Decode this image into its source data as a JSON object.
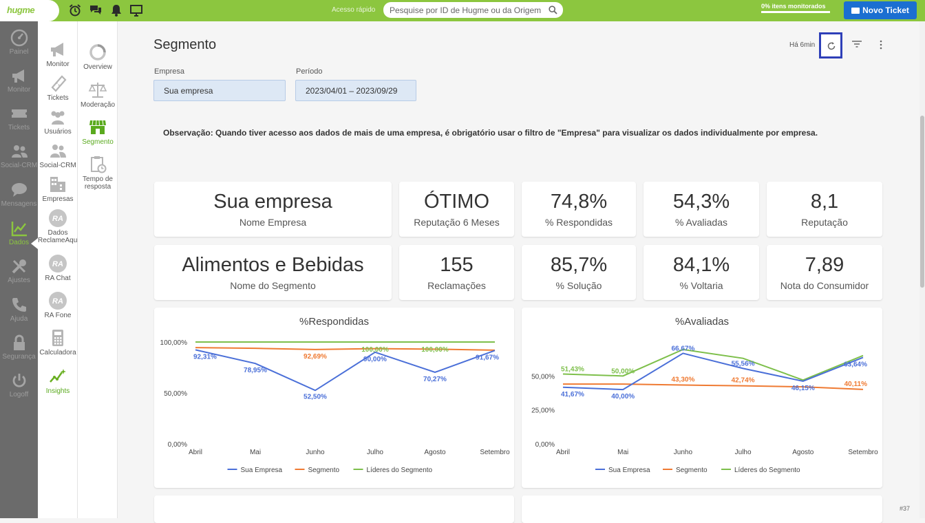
{
  "header": {
    "logo": "hugme",
    "quick_access_label": "Acesso rápido",
    "search_placeholder": "Pesquise por ID de Hugme ou da Origem",
    "monitor_status": "0% itens monitorados",
    "new_ticket_label": "Novo Ticket",
    "icons": [
      "alarm-icon",
      "chat-icon",
      "bell-icon",
      "monitor-icon"
    ]
  },
  "nav": {
    "items": [
      {
        "label": "Painel",
        "icon": "dashboard-icon"
      },
      {
        "label": "Monitor",
        "icon": "megaphone-icon"
      },
      {
        "label": "Tickets",
        "icon": "ticket-icon"
      },
      {
        "label": "Social-CRM",
        "icon": "users-icon"
      },
      {
        "label": "Mensagens",
        "icon": "speech-bubble-icon"
      },
      {
        "label": "Dados",
        "icon": "line-chart-icon",
        "active": true
      },
      {
        "label": "Ajustes",
        "icon": "tools-icon"
      },
      {
        "label": "Ajuda",
        "icon": "phone-icon"
      },
      {
        "label": "Segurança",
        "icon": "lock-icon"
      },
      {
        "label": "Logoff",
        "icon": "power-icon"
      }
    ]
  },
  "submenu1": {
    "items": [
      {
        "label": "Monitor",
        "icon": "megaphone-icon"
      },
      {
        "label": "Tickets",
        "icon": "ticket-icon"
      },
      {
        "label": "Usuários",
        "icon": "users-icon"
      },
      {
        "label": "Social-CRM",
        "icon": "users-icon"
      },
      {
        "label": "Empresas",
        "icon": "building-icon"
      },
      {
        "label": "Dados ReclameAqui",
        "icon": "ra-icon"
      },
      {
        "label": "RA Chat",
        "icon": "ra-icon"
      },
      {
        "label": "RA Fone",
        "icon": "ra-icon"
      },
      {
        "label": "Calculadora",
        "icon": "calculator-icon"
      },
      {
        "label": "Insights",
        "icon": "sparkle-icon",
        "active": true
      }
    ]
  },
  "submenu2": {
    "items": [
      {
        "label": "Overview",
        "icon": "ring-icon"
      },
      {
        "label": "Moderação",
        "icon": "scale-icon"
      },
      {
        "label": "Segmento",
        "icon": "store-icon",
        "active": true
      },
      {
        "label": "Tempo de resposta",
        "icon": "clipboard-clock-icon"
      }
    ]
  },
  "page": {
    "title": "Segmento",
    "updated": "Há 6min",
    "filters": {
      "company_label": "Empresa",
      "company_value": "Sua empresa",
      "period_label": "Período",
      "period_value": "2023/04/01 – 2023/09/29"
    },
    "note": "Observação: Quando tiver acesso aos dados de mais de uma empresa, é obrigatório usar o filtro de \"Empresa\" para visualizar os dados individualmente por empresa.",
    "cards": [
      {
        "value": "Sua empresa",
        "caption": "Nome Empresa"
      },
      {
        "value": "ÓTIMO",
        "caption": "Reputação 6 Meses"
      },
      {
        "value": "74,8%",
        "caption": "% Respondidas"
      },
      {
        "value": "54,3%",
        "caption": "% Avaliadas"
      },
      {
        "value": "8,1",
        "caption": "Reputação"
      },
      {
        "value": "Alimentos e Bebidas",
        "caption": "Nome do Segmento"
      },
      {
        "value": "155",
        "caption": "Reclamações"
      },
      {
        "value": "85,7%",
        "caption": "% Solução"
      },
      {
        "value": "84,1%",
        "caption": "% Voltaria"
      },
      {
        "value": "7,89",
        "caption": "Nota do Consumidor"
      }
    ],
    "version": "#37"
  },
  "colors": {
    "brand_green": "#8cc63f",
    "series_empresa": "#4a6fd8",
    "series_segmento": "#ef7a32",
    "series_lideres": "#7dbf4a"
  },
  "chart_data": [
    {
      "type": "line",
      "title": "%Respondidas",
      "categories": [
        "Abril",
        "Mai",
        "Junho",
        "Julho",
        "Agosto",
        "Setembro"
      ],
      "yticks": [
        "0,00%",
        "50,00%",
        "100,00%"
      ],
      "ylim": [
        0,
        100
      ],
      "series": [
        {
          "name": "Sua Empresa",
          "values": [
            92.31,
            78.95,
            52.5,
            90.0,
            70.27,
            91.67
          ],
          "labels": [
            "92,31%",
            "78,95%",
            "52,50%",
            "90,00%",
            "70,27%",
            "91,67%"
          ]
        },
        {
          "name": "Segmento",
          "values": [
            94.5,
            93.8,
            92.69,
            93.5,
            93.0,
            92.0
          ],
          "labels": [
            "",
            "",
            "92,69%",
            "",
            "",
            ""
          ]
        },
        {
          "name": "Líderes do Segmento",
          "values": [
            100,
            100,
            100,
            100,
            100,
            100
          ],
          "labels": [
            "",
            "",
            "",
            "100,00%",
            "100,00%",
            ""
          ]
        }
      ],
      "legend": "bottom"
    },
    {
      "type": "line",
      "title": "%Avaliadas",
      "categories": [
        "Abril",
        "Mai",
        "Junho",
        "Julho",
        "Agosto",
        "Setembro"
      ],
      "yticks": [
        "0,00%",
        "25,00%",
        "50,00%"
      ],
      "ylim": [
        0,
        75
      ],
      "series": [
        {
          "name": "Sua Empresa",
          "values": [
            41.67,
            40.0,
            66.67,
            55.56,
            46.15,
            63.64
          ],
          "labels": [
            "41,67%",
            "40,00%",
            "66,67%",
            "55,56%",
            "46,15%",
            "63,64%"
          ]
        },
        {
          "name": "Segmento",
          "values": [
            44.0,
            44.0,
            43.3,
            42.74,
            42.0,
            40.11
          ],
          "labels": [
            "",
            "",
            "43,30%",
            "42,74%",
            "",
            "40,11%"
          ]
        },
        {
          "name": "Líderes do Segmento",
          "values": [
            51.43,
            50.0,
            69.5,
            63.0,
            47.0,
            65.0
          ],
          "labels": [
            "51,43%",
            "50,00%",
            "",
            "",
            "",
            ""
          ]
        }
      ],
      "legend": "bottom"
    }
  ]
}
